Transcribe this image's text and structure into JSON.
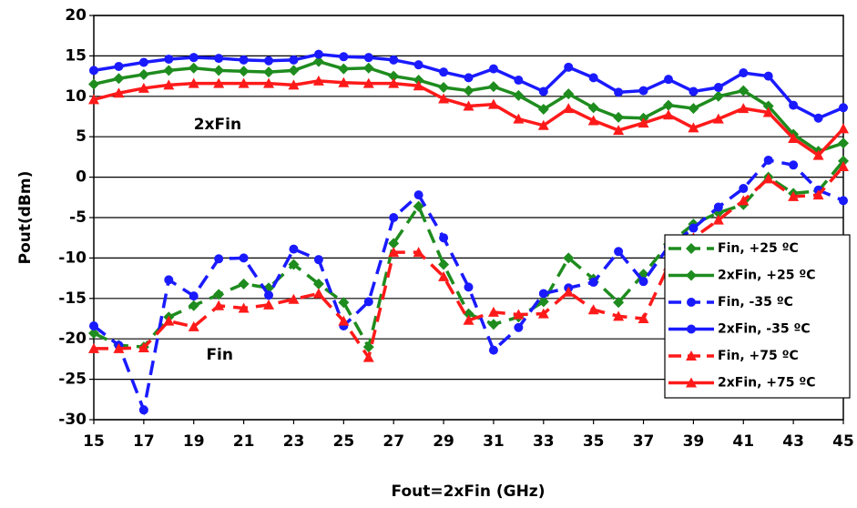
{
  "chart_data": {
    "type": "line",
    "x_label": "Fout=2xFin (GHz)",
    "y_label": "Pout(dBm)",
    "x": [
      15,
      16,
      17,
      18,
      19,
      20,
      21,
      22,
      23,
      24,
      25,
      26,
      27,
      28,
      29,
      30,
      31,
      32,
      33,
      34,
      35,
      36,
      37,
      38,
      39,
      40,
      41,
      42,
      43,
      44,
      45
    ],
    "xlim": [
      15,
      45
    ],
    "xticks": [
      15,
      17,
      19,
      21,
      23,
      25,
      27,
      29,
      31,
      33,
      35,
      37,
      39,
      41,
      43,
      45
    ],
    "ylim": [
      -30,
      20
    ],
    "yticks": [
      -30,
      -25,
      -20,
      -15,
      -10,
      -5,
      0,
      5,
      10,
      15,
      20
    ],
    "grid": true,
    "legend": "right",
    "annotations": [
      {
        "text": "2xFin",
        "x": 19,
        "y": 6.5
      },
      {
        "text": "Fin",
        "x": 19.5,
        "y": -22
      }
    ],
    "series": [
      {
        "name": "Fin, +25 ºC",
        "color": "#1e8c1e",
        "marker": "diamond",
        "dash": true,
        "values": [
          -19.3,
          -20.8,
          -21.0,
          -17.3,
          -15.9,
          -14.5,
          -13.2,
          -13.7,
          -10.8,
          -13.2,
          -15.5,
          -21.0,
          -8.2,
          -3.6,
          -10.8,
          -16.9,
          -18.2,
          -17.3,
          -15.4,
          -10.0,
          -12.6,
          -15.5,
          -12.0,
          -8.3,
          -5.8,
          -4.4,
          -3.4,
          0.0,
          -2.0,
          -1.7,
          2.0
        ]
      },
      {
        "name": "2xFin, +25 ºC",
        "color": "#1e8c1e",
        "marker": "diamond",
        "dash": false,
        "values": [
          11.5,
          12.2,
          12.7,
          13.2,
          13.5,
          13.2,
          13.1,
          13.0,
          13.2,
          14.3,
          13.4,
          13.5,
          12.5,
          12.0,
          11.1,
          10.7,
          11.2,
          10.1,
          8.4,
          10.3,
          8.6,
          7.4,
          7.3,
          8.9,
          8.5,
          10.0,
          10.7,
          8.8,
          5.3,
          3.2,
          4.2
        ]
      },
      {
        "name": "Fin, -35 ºC",
        "color": "#1a1aff",
        "marker": "circle",
        "dash": true,
        "values": [
          -18.4,
          -20.8,
          -28.8,
          -12.7,
          -14.7,
          -10.1,
          -10.0,
          -14.6,
          -8.9,
          -10.2,
          -18.4,
          -15.4,
          -5.0,
          -2.2,
          -7.5,
          -13.6,
          -21.4,
          -18.6,
          -14.4,
          -13.7,
          -13.0,
          -9.2,
          -12.9,
          -8.6,
          -6.3,
          -3.7,
          -1.4,
          2.1,
          1.5,
          -1.6,
          -2.9
        ]
      },
      {
        "name": "2xFin, -35 ºC",
        "color": "#1a1aff",
        "marker": "circle",
        "dash": false,
        "values": [
          13.2,
          13.7,
          14.2,
          14.6,
          14.8,
          14.7,
          14.5,
          14.4,
          14.5,
          15.2,
          14.9,
          14.8,
          14.5,
          13.9,
          13.0,
          12.3,
          13.4,
          12.0,
          10.6,
          13.6,
          12.3,
          10.5,
          10.7,
          12.1,
          10.6,
          11.1,
          12.9,
          12.5,
          8.9,
          7.3,
          8.6
        ]
      },
      {
        "name": "Fin, +75 ºC",
        "color": "#ff1a1a",
        "marker": "triangle",
        "dash": true,
        "values": [
          -21.2,
          -21.2,
          -21.1,
          -17.8,
          -18.5,
          -15.9,
          -16.2,
          -15.8,
          -15.1,
          -14.4,
          -17.8,
          -22.3,
          -9.3,
          -9.3,
          -12.3,
          -17.7,
          -16.7,
          -17.0,
          -16.9,
          -14.2,
          -16.4,
          -17.2,
          -17.5,
          -11.0,
          -7.5,
          -5.3,
          -2.9,
          -0.2,
          -2.4,
          -2.2,
          1.3
        ]
      },
      {
        "name": "2xFin, +75 ºC",
        "color": "#ff1a1a",
        "marker": "triangle",
        "dash": false,
        "values": [
          9.6,
          10.4,
          11.0,
          11.4,
          11.6,
          11.6,
          11.6,
          11.6,
          11.4,
          11.9,
          11.7,
          11.6,
          11.6,
          11.3,
          9.7,
          8.8,
          9.0,
          7.2,
          6.4,
          8.5,
          7.0,
          5.8,
          6.7,
          7.7,
          6.1,
          7.2,
          8.5,
          8.0,
          4.8,
          2.7,
          6.0
        ]
      }
    ]
  }
}
